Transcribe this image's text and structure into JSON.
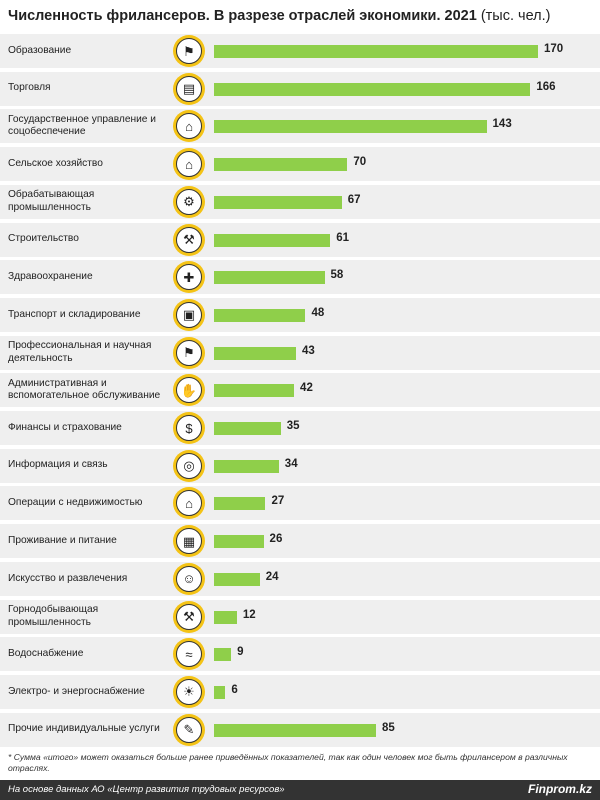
{
  "title": {
    "main": "Численность фрилансеров. В разрезе отраслей экономики. 2021",
    "unit": "(тыс. чел.)"
  },
  "chart_data": {
    "type": "bar",
    "orientation": "horizontal",
    "categories": [
      "Образование",
      "Торговля",
      "Государственное управление и соцобеспечение",
      "Сельское хозяйство",
      "Обрабатывающая промышленность",
      "Строительство",
      "Здравоохранение",
      "Транспорт и складирование",
      "Профессиональная и научная деятельность",
      "Административная и вспомогательное обслуживание",
      "Финансы и страхование",
      "Информация и связь",
      "Операции с недвижимостью",
      "Проживание и питание",
      "Искусство и развлечения",
      "Горнодобывающая промышленность",
      "Водоснабжение",
      "Электро- и энергоснабжение",
      "Прочие индивидуальные услуги"
    ],
    "values": [
      170,
      166,
      143,
      70,
      67,
      61,
      58,
      48,
      43,
      42,
      35,
      34,
      27,
      26,
      24,
      12,
      9,
      6,
      85
    ],
    "icons": [
      "graduation-cap-icon",
      "shopping-cart-icon",
      "government-building-icon",
      "barn-icon",
      "factory-gear-icon",
      "crane-icon",
      "medical-cross-icon",
      "truck-icon",
      "scholar-icon",
      "hand-person-icon",
      "finance-shield-icon",
      "globe-network-icon",
      "house-handshake-icon",
      "hotel-icon",
      "theater-masks-icon",
      "pickaxe-icon",
      "water-tap-icon",
      "light-bulb-icon",
      "document-pen-icon"
    ],
    "bar_color": "#8fcf4a",
    "icon_ring_color": "#f4c315"
  },
  "footnote": "* Сумма «итого» может оказаться больше ранее приведённых показателей, так как один человек мог быть фрилансером в различных отраслях.",
  "footer": {
    "source": "На основе данных АО «Центр развития трудовых ресурсов»",
    "brand": "Finprom.kz"
  }
}
